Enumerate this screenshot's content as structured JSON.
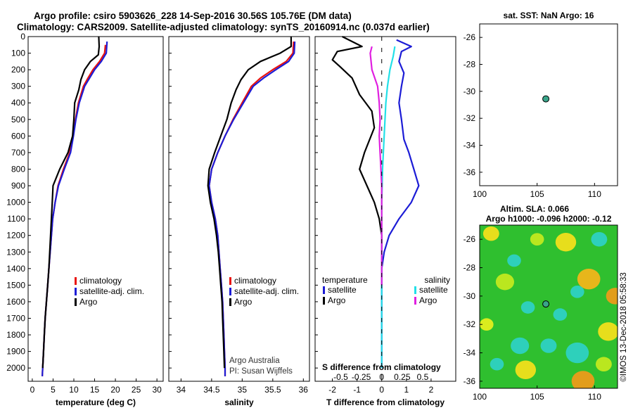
{
  "header": {
    "line1": "Argo profile: csiro 5903626_228 14-Sep-2016 30.56S 105.76E (DM data)",
    "line2": "Climatology: CARS2009. Satellite-adjusted climatology: synTS_20160914.nc (0.037d earlier)"
  },
  "credit": {
    "line1": "Argo Australia",
    "line2": "PI: Susan Wijffels"
  },
  "stamp": "©IMOS 13-Dec-2018 05:58:33",
  "colors": {
    "climatology": "#e8130f",
    "satellite": "#1c1cd6",
    "argo": "#000000",
    "sat_temp": "#22e0e8",
    "sal_diff": "#e01fe0",
    "map_fill": "#2fbf2f"
  },
  "chart_data": [
    {
      "id": "temperature",
      "type": "line",
      "xlabel": "temperature (deg C)",
      "xlim": [
        -1,
        31.5
      ],
      "ylim": [
        2080,
        0
      ],
      "xticks": [
        0,
        5,
        10,
        15,
        20,
        25,
        30
      ],
      "yticks": [
        0,
        100,
        200,
        300,
        400,
        500,
        600,
        700,
        800,
        900,
        1000,
        1100,
        1200,
        1300,
        1400,
        1500,
        1600,
        1700,
        1800,
        1900,
        2000
      ],
      "legend": [
        "climatology",
        "satellite-adj. clim.",
        "Argo"
      ],
      "series": [
        {
          "name": "climatology",
          "color": "#e8130f",
          "points": [
            [
              17.6,
              50
            ],
            [
              17.4,
              100
            ],
            [
              16.2,
              150
            ],
            [
              14.6,
              200
            ],
            [
              13.4,
              250
            ],
            [
              12.3,
              300
            ],
            [
              11.1,
              400
            ],
            [
              10.4,
              500
            ],
            [
              9.8,
              600
            ],
            [
              9.0,
              700
            ],
            [
              7.5,
              800
            ],
            [
              6.2,
              900
            ],
            [
              5.5,
              1000
            ],
            [
              4.9,
              1100
            ],
            [
              4.6,
              1200
            ],
            [
              4.3,
              1300
            ],
            [
              4.0,
              1400
            ],
            [
              3.7,
              1500
            ],
            [
              3.4,
              1600
            ],
            [
              3.1,
              1700
            ],
            [
              2.9,
              1800
            ],
            [
              2.7,
              1900
            ],
            [
              2.5,
              2000
            ],
            [
              2.4,
              2050
            ]
          ]
        },
        {
          "name": "satellite-adj. clim.",
          "color": "#1c1cd6",
          "points": [
            [
              18.0,
              30
            ],
            [
              17.8,
              100
            ],
            [
              16.6,
              150
            ],
            [
              15.0,
              200
            ],
            [
              13.8,
              250
            ],
            [
              12.6,
              300
            ],
            [
              11.3,
              400
            ],
            [
              10.5,
              500
            ],
            [
              9.9,
              600
            ],
            [
              9.2,
              700
            ],
            [
              7.7,
              800
            ],
            [
              6.3,
              900
            ],
            [
              5.5,
              1000
            ],
            [
              4.9,
              1100
            ],
            [
              4.6,
              1200
            ],
            [
              4.3,
              1300
            ],
            [
              4.0,
              1400
            ],
            [
              3.7,
              1500
            ],
            [
              3.4,
              1600
            ],
            [
              3.1,
              1700
            ],
            [
              2.9,
              1800
            ],
            [
              2.7,
              1900
            ],
            [
              2.5,
              2000
            ],
            [
              2.4,
              2050
            ]
          ]
        },
        {
          "name": "Argo",
          "color": "#000000",
          "points": [
            [
              16.0,
              0
            ],
            [
              16.1,
              60
            ],
            [
              15.9,
              110
            ],
            [
              14.0,
              150
            ],
            [
              12.6,
              200
            ],
            [
              11.7,
              260
            ],
            [
              11.2,
              320
            ],
            [
              10.2,
              400
            ],
            [
              10.0,
              500
            ],
            [
              9.7,
              600
            ],
            [
              8.6,
              700
            ],
            [
              6.6,
              800
            ],
            [
              5.0,
              900
            ],
            [
              4.8,
              1000
            ],
            [
              4.6,
              1100
            ],
            [
              4.4,
              1200
            ],
            [
              4.2,
              1300
            ],
            [
              4.0,
              1400
            ],
            [
              3.7,
              1500
            ],
            [
              3.4,
              1600
            ],
            [
              3.1,
              1700
            ],
            [
              2.9,
              1800
            ],
            [
              2.7,
              1900
            ],
            [
              2.5,
              2000
            ]
          ]
        }
      ]
    },
    {
      "id": "salinity",
      "type": "line",
      "xlabel": "salinity",
      "xlim": [
        33.8,
        36.1
      ],
      "ylim": [
        2080,
        0
      ],
      "xticks": [
        34,
        34.5,
        35,
        35.5,
        36
      ],
      "xticklabels": [
        "34",
        "34.5",
        "35",
        "35.5",
        "36"
      ],
      "legend": [
        "climatology",
        "satellite-adj. clim.",
        "Argo"
      ],
      "series": [
        {
          "name": "climatology",
          "color": "#e8130f",
          "points": [
            [
              35.84,
              30
            ],
            [
              35.83,
              100
            ],
            [
              35.72,
              150
            ],
            [
              35.5,
              200
            ],
            [
              35.3,
              250
            ],
            [
              35.15,
              300
            ],
            [
              35.0,
              400
            ],
            [
              34.85,
              500
            ],
            [
              34.72,
              600
            ],
            [
              34.6,
              700
            ],
            [
              34.5,
              800
            ],
            [
              34.46,
              900
            ],
            [
              34.5,
              1000
            ],
            [
              34.56,
              1100
            ],
            [
              34.6,
              1200
            ],
            [
              34.62,
              1300
            ],
            [
              34.64,
              1400
            ],
            [
              34.66,
              1500
            ],
            [
              34.68,
              1600
            ],
            [
              34.69,
              1700
            ],
            [
              34.7,
              1800
            ],
            [
              34.71,
              1900
            ],
            [
              34.72,
              2000
            ],
            [
              34.72,
              2050
            ]
          ]
        },
        {
          "name": "satellite-adj. clim.",
          "color": "#1c1cd6",
          "points": [
            [
              35.86,
              30
            ],
            [
              35.85,
              100
            ],
            [
              35.76,
              150
            ],
            [
              35.55,
              200
            ],
            [
              35.35,
              250
            ],
            [
              35.18,
              300
            ],
            [
              35.02,
              400
            ],
            [
              34.86,
              500
            ],
            [
              34.72,
              600
            ],
            [
              34.6,
              700
            ],
            [
              34.5,
              800
            ],
            [
              34.46,
              900
            ],
            [
              34.5,
              1000
            ],
            [
              34.56,
              1100
            ],
            [
              34.6,
              1200
            ],
            [
              34.62,
              1300
            ],
            [
              34.64,
              1400
            ],
            [
              34.66,
              1500
            ],
            [
              34.68,
              1600
            ],
            [
              34.69,
              1700
            ],
            [
              34.7,
              1800
            ],
            [
              34.71,
              1900
            ],
            [
              34.72,
              2000
            ],
            [
              34.72,
              2050
            ]
          ]
        },
        {
          "name": "Argo",
          "color": "#000000",
          "points": [
            [
              35.8,
              0
            ],
            [
              35.8,
              60
            ],
            [
              35.62,
              100
            ],
            [
              35.3,
              150
            ],
            [
              35.1,
              200
            ],
            [
              34.98,
              260
            ],
            [
              34.9,
              320
            ],
            [
              34.82,
              400
            ],
            [
              34.75,
              500
            ],
            [
              34.65,
              600
            ],
            [
              34.55,
              700
            ],
            [
              34.46,
              800
            ],
            [
              34.44,
              900
            ],
            [
              34.48,
              1000
            ],
            [
              34.54,
              1100
            ],
            [
              34.58,
              1200
            ],
            [
              34.61,
              1300
            ],
            [
              34.63,
              1400
            ],
            [
              34.65,
              1500
            ],
            [
              34.67,
              1600
            ],
            [
              34.68,
              1700
            ],
            [
              34.69,
              1800
            ],
            [
              34.7,
              1900
            ],
            [
              34.71,
              2000
            ]
          ]
        }
      ]
    },
    {
      "id": "difference",
      "type": "line",
      "xlabel": "T difference from climatology",
      "xlabel2": "S difference from climatology",
      "xlim": [
        -2.7,
        3.0
      ],
      "ylim": [
        2080,
        0
      ],
      "xticks": [
        -2,
        -1,
        0,
        1,
        2
      ],
      "xticks2": [
        -0.5,
        -0.25,
        0,
        0.25,
        0.5
      ],
      "xticklabels2": [
        "-0.5",
        "-0.25",
        "0",
        "0.25",
        "0.5"
      ],
      "legend_title_left": "temperature",
      "legend_title_right": "salinity",
      "legend_left": [
        "satellite",
        "Argo"
      ],
      "legend_right": [
        "satellite",
        "Argo"
      ],
      "series": [
        {
          "name": "T satellite",
          "color": "#1c1cd6",
          "points": [
            [
              0.6,
              20
            ],
            [
              1.2,
              60
            ],
            [
              0.8,
              90
            ],
            [
              0.7,
              150
            ],
            [
              0.9,
              220
            ],
            [
              0.8,
              300
            ],
            [
              0.7,
              400
            ],
            [
              0.8,
              500
            ],
            [
              0.9,
              620
            ],
            [
              1.1,
              700
            ],
            [
              1.3,
              800
            ],
            [
              1.5,
              900
            ],
            [
              1.2,
              1000
            ],
            [
              0.7,
              1100
            ],
            [
              0.3,
              1200
            ],
            [
              0.1,
              1300
            ],
            [
              0.0,
              1400
            ],
            [
              0.0,
              2000
            ]
          ]
        },
        {
          "name": "T Argo",
          "color": "#000000",
          "points": [
            [
              -1.6,
              0
            ],
            [
              -0.8,
              60
            ],
            [
              -1.8,
              90
            ],
            [
              -2.0,
              140
            ],
            [
              -1.7,
              180
            ],
            [
              -1.2,
              250
            ],
            [
              -0.9,
              350
            ],
            [
              -0.4,
              450
            ],
            [
              -0.3,
              550
            ],
            [
              -0.7,
              700
            ],
            [
              -0.9,
              800
            ],
            [
              -0.6,
              900
            ],
            [
              -0.3,
              1000
            ],
            [
              -0.1,
              1100
            ],
            [
              0.0,
              1200
            ],
            [
              0.0,
              1300
            ]
          ]
        },
        {
          "name": "S satellite",
          "color": "#22e0e8",
          "points": [
            [
              0.16,
              60
            ],
            [
              0.14,
              120
            ],
            [
              0.1,
              200
            ],
            [
              0.07,
              300
            ],
            [
              0.05,
              400
            ],
            [
              0.04,
              500
            ],
            [
              0.03,
              600
            ],
            [
              0.01,
              800
            ],
            [
              0.0,
              1000
            ],
            [
              0.0,
              2000
            ]
          ]
        },
        {
          "name": "S Argo",
          "color": "#e01fe0",
          "points": [
            [
              -0.12,
              60
            ],
            [
              -0.14,
              100
            ],
            [
              -0.12,
              200
            ],
            [
              -0.05,
              300
            ],
            [
              -0.03,
              400
            ],
            [
              -0.02,
              500
            ],
            [
              -0.03,
              600
            ],
            [
              -0.02,
              700
            ],
            [
              -0.01,
              800
            ],
            [
              0.0,
              900
            ],
            [
              0.0,
              1500
            ]
          ]
        }
      ]
    },
    {
      "id": "sst_map",
      "type": "scatter",
      "title": "sat. SST: NaN Argo: 16",
      "xlim": [
        100,
        112
      ],
      "ylim": [
        -37,
        -25
      ],
      "xticks": [
        100,
        105,
        110
      ],
      "yticks": [
        -26,
        -28,
        -30,
        -32,
        -34,
        -36
      ],
      "points": [
        [
          105.76,
          -30.56
        ]
      ]
    },
    {
      "id": "sla_map",
      "type": "heatmap",
      "title": "Altim. SLA: 0.066",
      "title2": "Argo h1000: -0.096 h2000: -0.12",
      "xlim": [
        100,
        112
      ],
      "ylim": [
        -36.5,
        -25
      ],
      "xticks": [
        100,
        105,
        110
      ],
      "yticks": [
        -26,
        -28,
        -30,
        -32,
        -34,
        -36
      ],
      "points": [
        [
          105.76,
          -30.56
        ]
      ],
      "blobs": [
        [
          107.5,
          -26.2,
          0.9,
          "#f7e11b"
        ],
        [
          109.5,
          -28.8,
          1.0,
          "#f7b51a"
        ],
        [
          111.8,
          -30.0,
          0.8,
          "#f29a1a"
        ],
        [
          103.0,
          -27.5,
          0.6,
          "#2fd1c8"
        ],
        [
          101.0,
          -25.6,
          0.7,
          "#f7e11b"
        ],
        [
          102.2,
          -29.0,
          0.8,
          "#c7ea1e"
        ],
        [
          100.6,
          -32.0,
          0.6,
          "#e9f01d"
        ],
        [
          103.5,
          -33.5,
          0.8,
          "#2fd1c8"
        ],
        [
          104.0,
          -35.2,
          0.9,
          "#f7e11b"
        ],
        [
          106.0,
          -33.5,
          0.7,
          "#2fd1c8"
        ],
        [
          108.5,
          -34.0,
          1.0,
          "#2fd1c8"
        ],
        [
          109.0,
          -36.0,
          1.0,
          "#f29a1a"
        ],
        [
          111.2,
          -32.5,
          0.9,
          "#f7e11b"
        ],
        [
          107.0,
          -31.3,
          0.6,
          "#2fd1c8"
        ],
        [
          110.8,
          -34.8,
          0.7,
          "#c7ea1e"
        ],
        [
          104.2,
          -30.8,
          0.6,
          "#2fd1c8"
        ],
        [
          101.5,
          -34.8,
          0.6,
          "#2fd1c8"
        ],
        [
          105.0,
          -26.0,
          0.6,
          "#c7ea1e"
        ],
        [
          108.5,
          -29.7,
          0.6,
          "#2fd1c8"
        ],
        [
          110.4,
          -26.0,
          0.7,
          "#2fd1c8"
        ]
      ]
    }
  ]
}
